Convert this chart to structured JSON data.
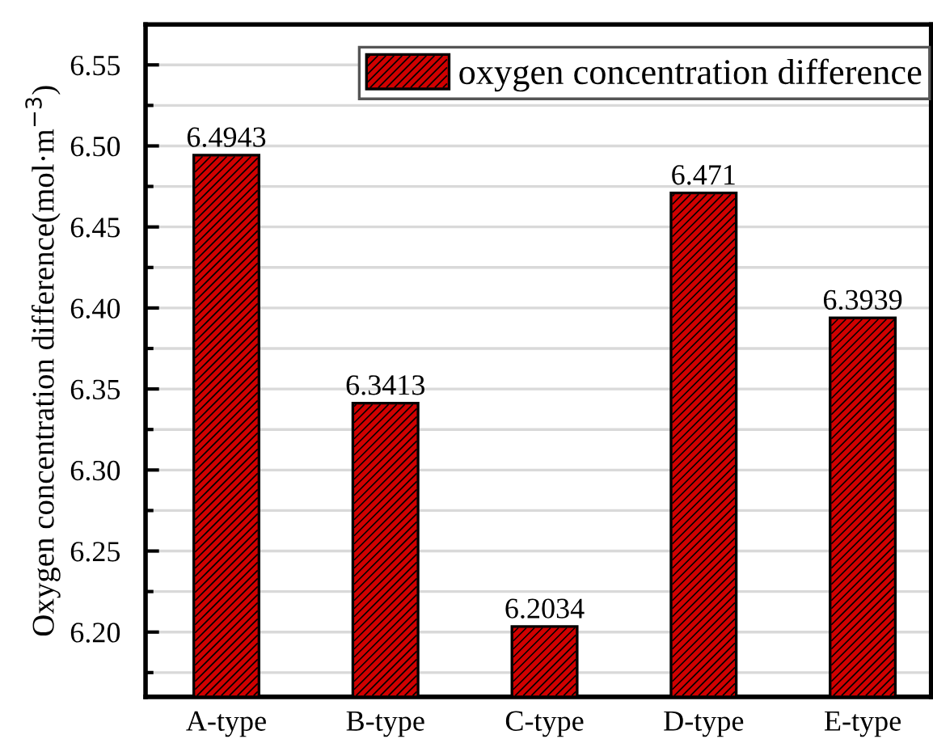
{
  "chart_data": {
    "type": "bar",
    "ylabel": "Oxygen concentration difference(mol·m$^{−3}$)",
    "categories": [
      "A-type",
      "B-type",
      "C-type",
      "D-type",
      "E-type"
    ],
    "series": [
      {
        "name": "oxygen concentration difference",
        "color": "#d00000",
        "values": [
          6.4943,
          6.3413,
          6.2034,
          6.471,
          6.3939
        ]
      }
    ],
    "ylim": [
      6.16,
      6.575
    ],
    "yticks": [
      {
        "value": 6.175,
        "label": null
      },
      {
        "value": 6.2,
        "label": "6.20"
      },
      {
        "value": 6.225,
        "label": null
      },
      {
        "value": 6.25,
        "label": "6.25"
      },
      {
        "value": 6.275,
        "label": null
      },
      {
        "value": 6.3,
        "label": "6.30"
      },
      {
        "value": 6.325,
        "label": null
      },
      {
        "value": 6.35,
        "label": "6.35"
      },
      {
        "value": 6.375,
        "label": null
      },
      {
        "value": 6.4,
        "label": "6.40"
      },
      {
        "value": 6.425,
        "label": null
      },
      {
        "value": 6.45,
        "label": "6.45"
      },
      {
        "value": 6.475,
        "label": null
      },
      {
        "value": 6.5,
        "label": "6.50"
      },
      {
        "value": 6.525,
        "label": null
      },
      {
        "value": 6.55,
        "label": "6.55"
      }
    ],
    "grid": "y",
    "legend": "top right",
    "data_labels": true
  }
}
